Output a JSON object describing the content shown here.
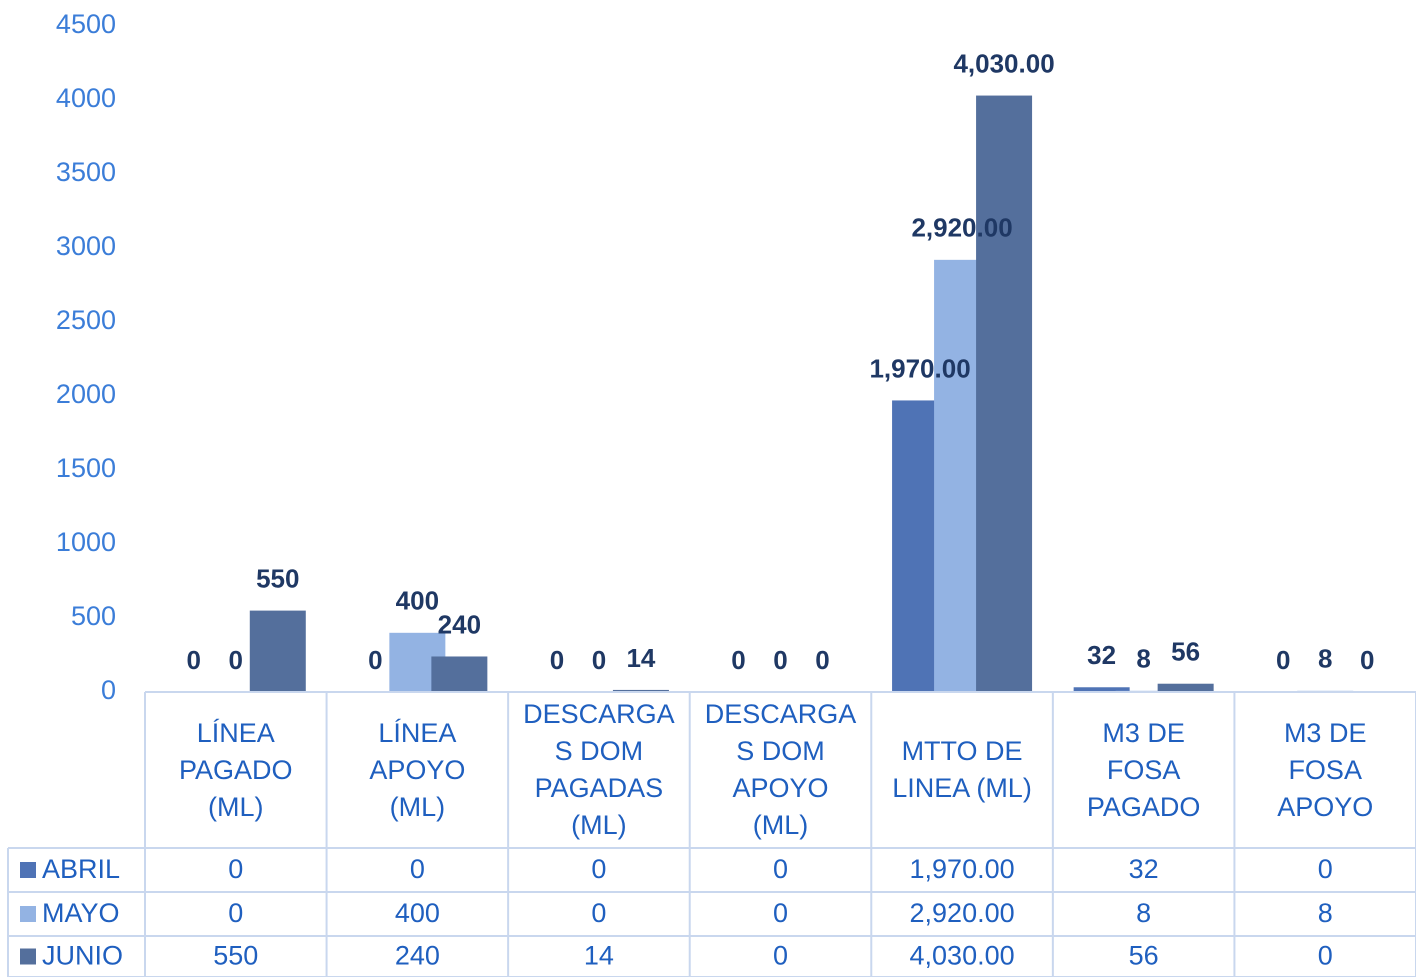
{
  "chart_data": {
    "type": "bar",
    "categories": [
      "LÍNEA PAGADO (ML)",
      "LÍNEA APOYO (ML)",
      "DESCARGAS DOM PAGADAS (ML)",
      "DESCARGAS DOM APOYO (ML)",
      "MTTO DE LINEA (ML)",
      "M3 DE FOSA PAGADO",
      "M3 DE FOSA APOYO"
    ],
    "series": [
      {
        "name": "ABRIL",
        "color": "#4f73b5",
        "values": [
          0,
          0,
          0,
          0,
          1970,
          32,
          0
        ],
        "value_labels": [
          "0",
          "0",
          "0",
          "0",
          "1,970.00",
          "32",
          "0"
        ]
      },
      {
        "name": "MAYO",
        "color": "#93b3e3",
        "values": [
          0,
          400,
          0,
          0,
          2920,
          8,
          8
        ],
        "value_labels": [
          "0",
          "400",
          "0",
          "0",
          "2,920.00",
          "8",
          "8"
        ]
      },
      {
        "name": "JUNIO",
        "color": "#546f9c",
        "values": [
          550,
          240,
          14,
          0,
          4030,
          56,
          0
        ],
        "value_labels": [
          "550",
          "240",
          "14",
          "0",
          "4,030.00",
          "56",
          "0"
        ]
      }
    ],
    "ylim": [
      0,
      4500
    ],
    "yticks": [
      0,
      500,
      1000,
      1500,
      2000,
      2500,
      3000,
      3500,
      4000,
      4500
    ],
    "data_table": true
  }
}
